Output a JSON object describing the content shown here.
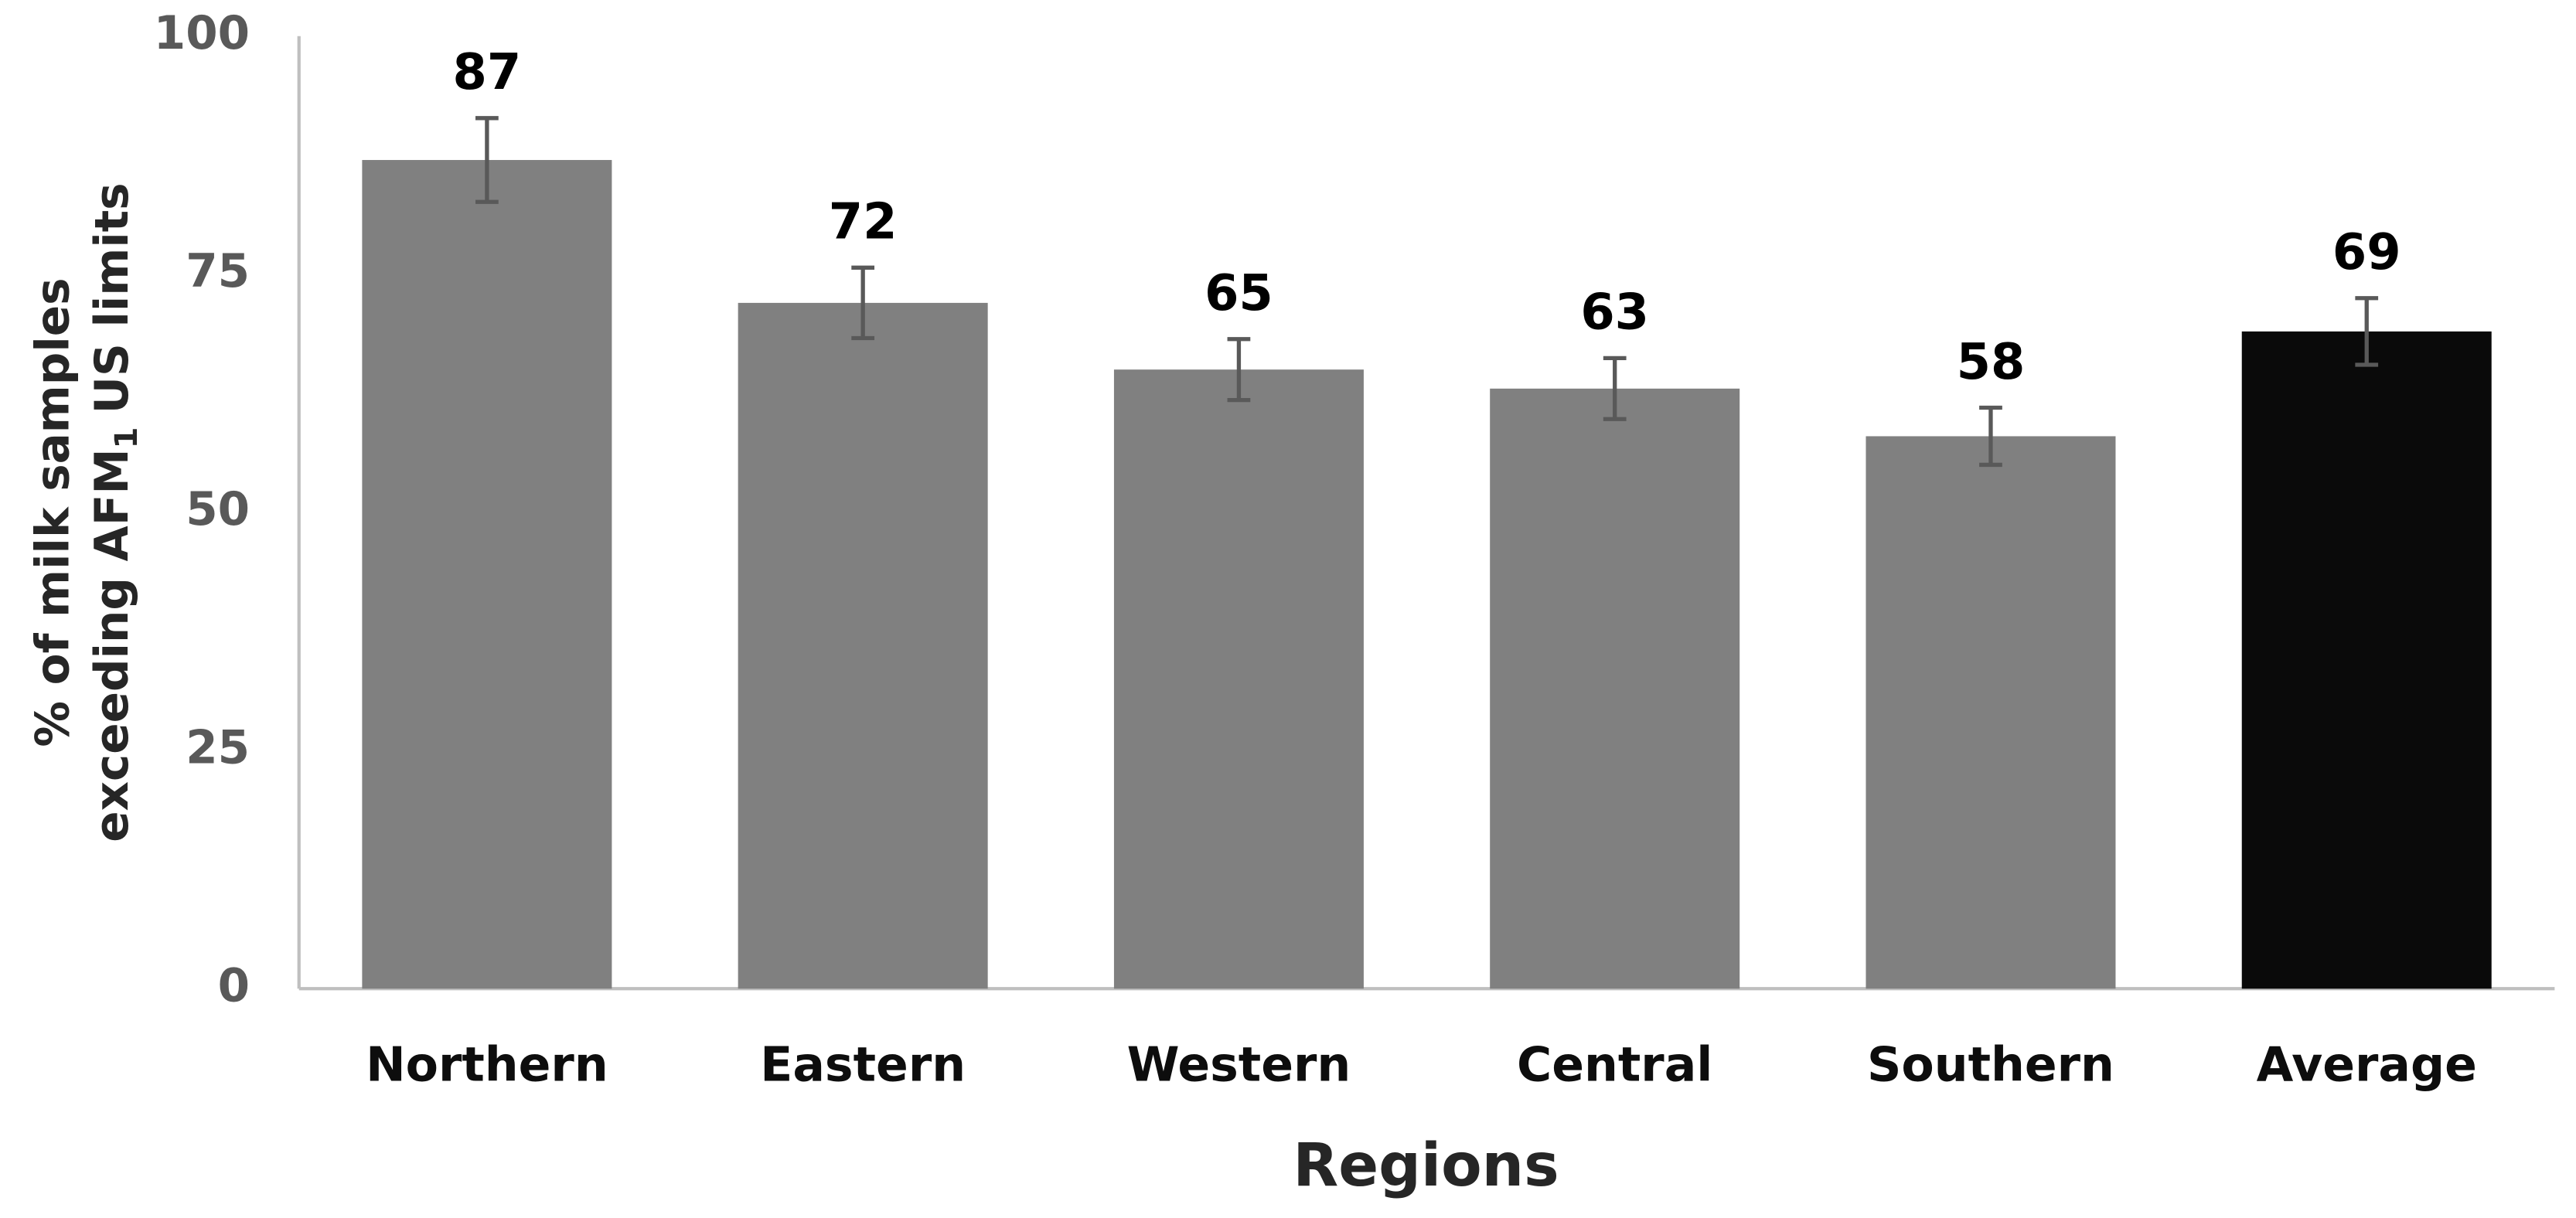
{
  "chart_data": {
    "type": "bar",
    "x_label": "Regions",
    "y_label": {
      "line1": "% of milk samples",
      "line2": [
        "exceeding AFM",
        "1",
        "US limits"
      ]
    },
    "categories": [
      "Northern",
      "Eastern",
      "Western",
      "Central",
      "Southern",
      "Average"
    ],
    "values": [
      87,
      72,
      65,
      63,
      58,
      69
    ],
    "errors": [
      4.4,
      3.7,
      3.2,
      3.2,
      3,
      3.5
    ],
    "colors": [
      "#808080",
      "#808080",
      "#808080",
      "#808080",
      "#808080",
      "#0a0a0a"
    ],
    "ylim": [
      0,
      100
    ],
    "yticks": [
      0,
      25,
      50,
      75,
      100
    ],
    "grid": false
  }
}
